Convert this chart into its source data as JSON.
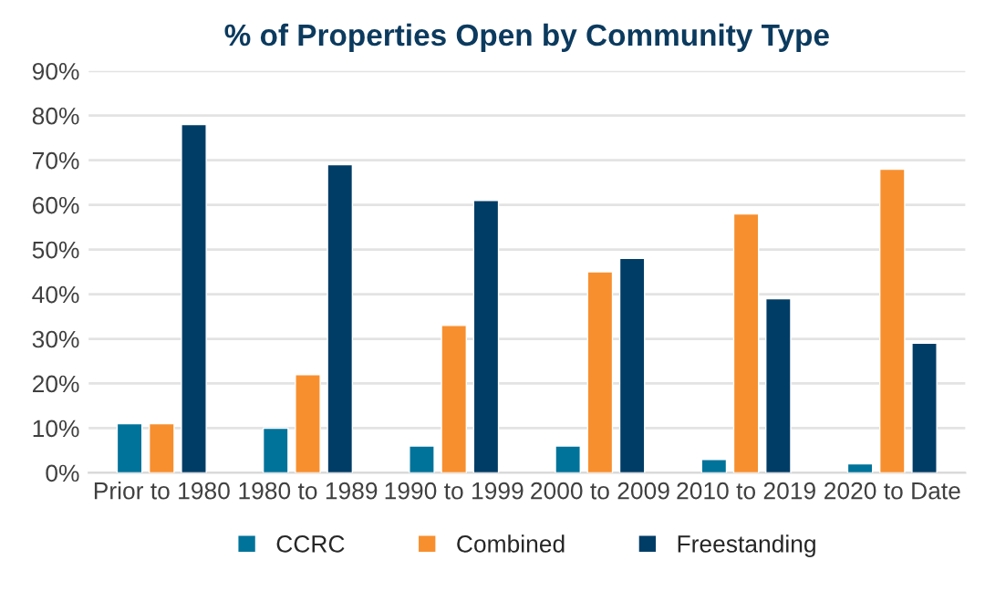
{
  "chart_data": {
    "type": "bar",
    "title": "% of Properties Open by Community Type",
    "categories": [
      "Prior to 1980",
      "1980 to 1989",
      "1990 to 1999",
      "2000 to 2009",
      "2010 to 2019",
      "2020 to Date"
    ],
    "series": [
      {
        "name": "CCRC",
        "color": "#00739a",
        "values": [
          11,
          10,
          6,
          6,
          3,
          2
        ]
      },
      {
        "name": "Combined",
        "color": "#f78f2e",
        "values": [
          11,
          22,
          33,
          45,
          58,
          68
        ]
      },
      {
        "name": "Freestanding",
        "color": "#003d66",
        "values": [
          78,
          69,
          61,
          48,
          39,
          29
        ]
      }
    ],
    "ylim": [
      0,
      90
    ],
    "yticks": [
      {
        "value": 0,
        "label": "0%"
      },
      {
        "value": 10,
        "label": "10%"
      },
      {
        "value": 20,
        "label": "20%"
      },
      {
        "value": 30,
        "label": "30%"
      },
      {
        "value": 40,
        "label": "40%"
      },
      {
        "value": 50,
        "label": "50%"
      },
      {
        "value": 60,
        "label": "60%"
      },
      {
        "value": 70,
        "label": "70%"
      },
      {
        "value": 80,
        "label": "80%"
      },
      {
        "value": 90,
        "label": "90%"
      }
    ],
    "grid": "y",
    "legend": "bottom"
  }
}
